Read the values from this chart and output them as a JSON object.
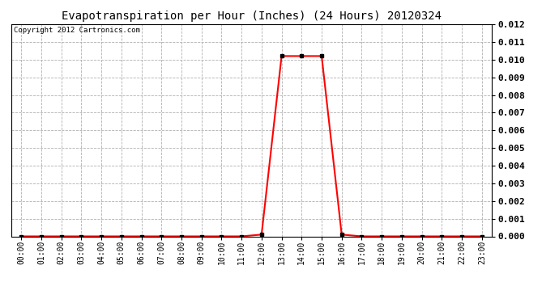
{
  "title": "Evapotranspiration per Hour (Inches) (24 Hours) 20120324",
  "copyright": "Copyright 2012 Cartronics.com",
  "hours": [
    "00:00",
    "01:00",
    "02:00",
    "03:00",
    "04:00",
    "05:00",
    "06:00",
    "07:00",
    "08:00",
    "09:00",
    "10:00",
    "11:00",
    "12:00",
    "13:00",
    "14:00",
    "15:00",
    "16:00",
    "17:00",
    "18:00",
    "19:00",
    "20:00",
    "21:00",
    "22:00",
    "23:00"
  ],
  "values": [
    0.0,
    0.0,
    0.0,
    0.0,
    0.0,
    0.0,
    0.0,
    0.0,
    0.0,
    0.0,
    0.0,
    0.0,
    0.0001,
    0.0102,
    0.0102,
    0.0102,
    0.0001,
    0.0,
    0.0,
    0.0,
    0.0,
    0.0,
    0.0,
    0.0
  ],
  "ylim": [
    0,
    0.012
  ],
  "yticks": [
    0.0,
    0.001,
    0.002,
    0.003,
    0.004,
    0.005,
    0.006,
    0.007,
    0.008,
    0.009,
    0.01,
    0.011,
    0.012
  ],
  "line_color": "red",
  "marker": "s",
  "marker_color": "black",
  "marker_size": 2.5,
  "bg_color": "#ffffff",
  "grid_color": "#b0b0b0",
  "title_fontsize": 10,
  "copyright_fontsize": 6.5,
  "tick_fontsize": 7,
  "ytick_fontsize": 8,
  "fig_width": 6.9,
  "fig_height": 3.75
}
